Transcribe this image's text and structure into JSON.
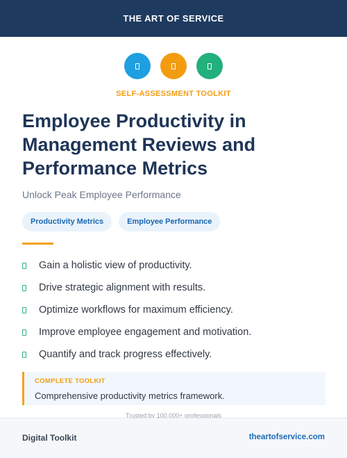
{
  "header": {
    "brand": "THE ART OF SERVICE"
  },
  "icons": [
    {
      "name": "chart-icon",
      "color": "#1e9fe0"
    },
    {
      "name": "target-icon",
      "color": "#f39c12"
    },
    {
      "name": "trend-icon",
      "color": "#22b07d"
    }
  ],
  "kicker": "SELF-ASSESSMENT TOOLKIT",
  "kicker_color": "#f39c12",
  "title": "Employee Productivity in Management Reviews and Performance Metrics",
  "subtitle": "Unlock Peak Employee Performance",
  "tags": [
    "Productivity Metrics",
    "Employee Performance"
  ],
  "accent_color": "#f4a11c",
  "features": [
    "Gain a holistic view of productivity.",
    "Drive strategic alignment with results.",
    "Optimize workflows for maximum efficiency.",
    "Improve employee engagement and motivation.",
    "Quantify and track progress effectively."
  ],
  "callout": {
    "label": "COMPLETE TOOLKIT",
    "text": "Comprehensive productivity metrics framework."
  },
  "trusted": "Trusted by 100,000+ professionals",
  "footer": {
    "left": "Digital Toolkit",
    "right": "theartofservice.com"
  }
}
